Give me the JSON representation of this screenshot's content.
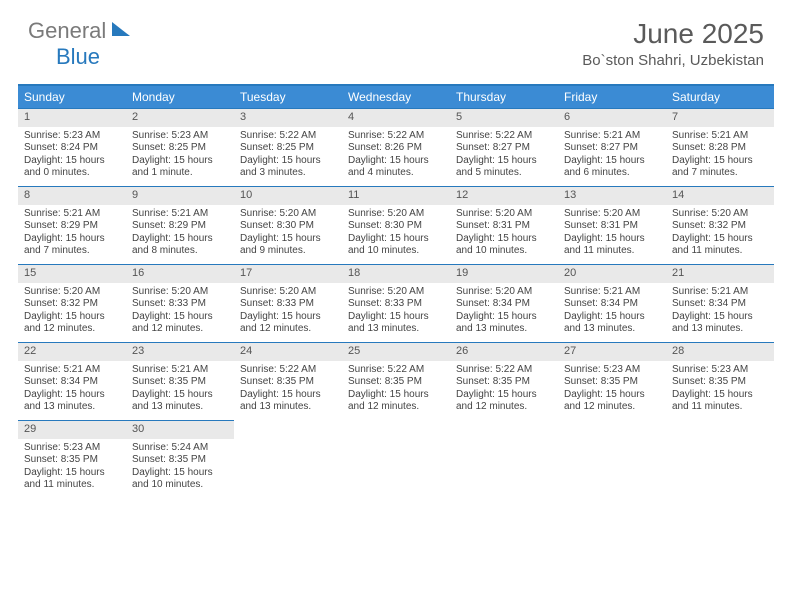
{
  "brand": {
    "part1": "General",
    "part2": "Blue"
  },
  "title": "June 2025",
  "location": "Bo`ston Shahri, Uzbekistan",
  "colors": {
    "header_bg": "#3b8bd4",
    "accent": "#2779bd",
    "daynum_bg": "#e9e9e9",
    "text": "#444444",
    "title_text": "#5a5a5a"
  },
  "weekdays": [
    "Sunday",
    "Monday",
    "Tuesday",
    "Wednesday",
    "Thursday",
    "Friday",
    "Saturday"
  ],
  "weeks": [
    [
      {
        "n": "1",
        "sr": "5:23 AM",
        "ss": "8:24 PM",
        "dl": "15 hours and 0 minutes."
      },
      {
        "n": "2",
        "sr": "5:23 AM",
        "ss": "8:25 PM",
        "dl": "15 hours and 1 minute."
      },
      {
        "n": "3",
        "sr": "5:22 AM",
        "ss": "8:25 PM",
        "dl": "15 hours and 3 minutes."
      },
      {
        "n": "4",
        "sr": "5:22 AM",
        "ss": "8:26 PM",
        "dl": "15 hours and 4 minutes."
      },
      {
        "n": "5",
        "sr": "5:22 AM",
        "ss": "8:27 PM",
        "dl": "15 hours and 5 minutes."
      },
      {
        "n": "6",
        "sr": "5:21 AM",
        "ss": "8:27 PM",
        "dl": "15 hours and 6 minutes."
      },
      {
        "n": "7",
        "sr": "5:21 AM",
        "ss": "8:28 PM",
        "dl": "15 hours and 7 minutes."
      }
    ],
    [
      {
        "n": "8",
        "sr": "5:21 AM",
        "ss": "8:29 PM",
        "dl": "15 hours and 7 minutes."
      },
      {
        "n": "9",
        "sr": "5:21 AM",
        "ss": "8:29 PM",
        "dl": "15 hours and 8 minutes."
      },
      {
        "n": "10",
        "sr": "5:20 AM",
        "ss": "8:30 PM",
        "dl": "15 hours and 9 minutes."
      },
      {
        "n": "11",
        "sr": "5:20 AM",
        "ss": "8:30 PM",
        "dl": "15 hours and 10 minutes."
      },
      {
        "n": "12",
        "sr": "5:20 AM",
        "ss": "8:31 PM",
        "dl": "15 hours and 10 minutes."
      },
      {
        "n": "13",
        "sr": "5:20 AM",
        "ss": "8:31 PM",
        "dl": "15 hours and 11 minutes."
      },
      {
        "n": "14",
        "sr": "5:20 AM",
        "ss": "8:32 PM",
        "dl": "15 hours and 11 minutes."
      }
    ],
    [
      {
        "n": "15",
        "sr": "5:20 AM",
        "ss": "8:32 PM",
        "dl": "15 hours and 12 minutes."
      },
      {
        "n": "16",
        "sr": "5:20 AM",
        "ss": "8:33 PM",
        "dl": "15 hours and 12 minutes."
      },
      {
        "n": "17",
        "sr": "5:20 AM",
        "ss": "8:33 PM",
        "dl": "15 hours and 12 minutes."
      },
      {
        "n": "18",
        "sr": "5:20 AM",
        "ss": "8:33 PM",
        "dl": "15 hours and 13 minutes."
      },
      {
        "n": "19",
        "sr": "5:20 AM",
        "ss": "8:34 PM",
        "dl": "15 hours and 13 minutes."
      },
      {
        "n": "20",
        "sr": "5:21 AM",
        "ss": "8:34 PM",
        "dl": "15 hours and 13 minutes."
      },
      {
        "n": "21",
        "sr": "5:21 AM",
        "ss": "8:34 PM",
        "dl": "15 hours and 13 minutes."
      }
    ],
    [
      {
        "n": "22",
        "sr": "5:21 AM",
        "ss": "8:34 PM",
        "dl": "15 hours and 13 minutes."
      },
      {
        "n": "23",
        "sr": "5:21 AM",
        "ss": "8:35 PM",
        "dl": "15 hours and 13 minutes."
      },
      {
        "n": "24",
        "sr": "5:22 AM",
        "ss": "8:35 PM",
        "dl": "15 hours and 13 minutes."
      },
      {
        "n": "25",
        "sr": "5:22 AM",
        "ss": "8:35 PM",
        "dl": "15 hours and 12 minutes."
      },
      {
        "n": "26",
        "sr": "5:22 AM",
        "ss": "8:35 PM",
        "dl": "15 hours and 12 minutes."
      },
      {
        "n": "27",
        "sr": "5:23 AM",
        "ss": "8:35 PM",
        "dl": "15 hours and 12 minutes."
      },
      {
        "n": "28",
        "sr": "5:23 AM",
        "ss": "8:35 PM",
        "dl": "15 hours and 11 minutes."
      }
    ],
    [
      {
        "n": "29",
        "sr": "5:23 AM",
        "ss": "8:35 PM",
        "dl": "15 hours and 11 minutes."
      },
      {
        "n": "30",
        "sr": "5:24 AM",
        "ss": "8:35 PM",
        "dl": "15 hours and 10 minutes."
      },
      null,
      null,
      null,
      null,
      null
    ]
  ],
  "labels": {
    "sunrise": "Sunrise: ",
    "sunset": "Sunset: ",
    "daylight": "Daylight: "
  }
}
